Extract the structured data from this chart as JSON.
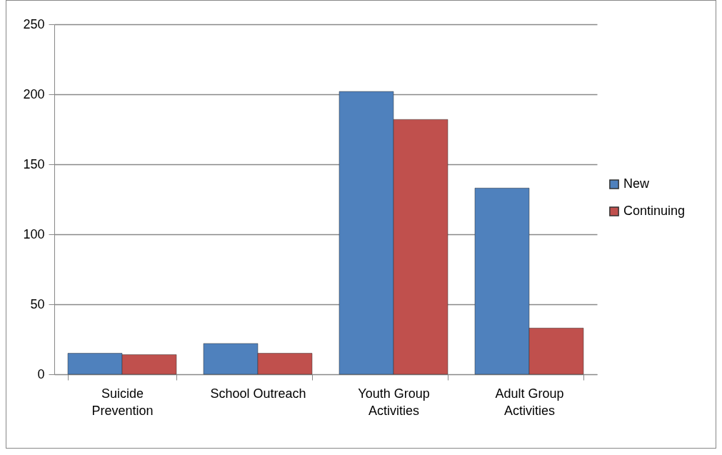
{
  "chart_data": {
    "type": "bar",
    "categories": [
      "Suicide Prevention",
      "School Outreach",
      "Youth Group Activities",
      "Adult Group Activities"
    ],
    "series": [
      {
        "name": "New",
        "color": "#4f81bd",
        "values": [
          15,
          22,
          202,
          133
        ]
      },
      {
        "name": "Continuing",
        "color": "#c0504d",
        "values": [
          14,
          15,
          182,
          33
        ]
      }
    ],
    "ylim": [
      0,
      250
    ],
    "yticks": [
      0,
      50,
      100,
      150,
      200,
      250
    ],
    "grid": "y",
    "legend": "right"
  }
}
